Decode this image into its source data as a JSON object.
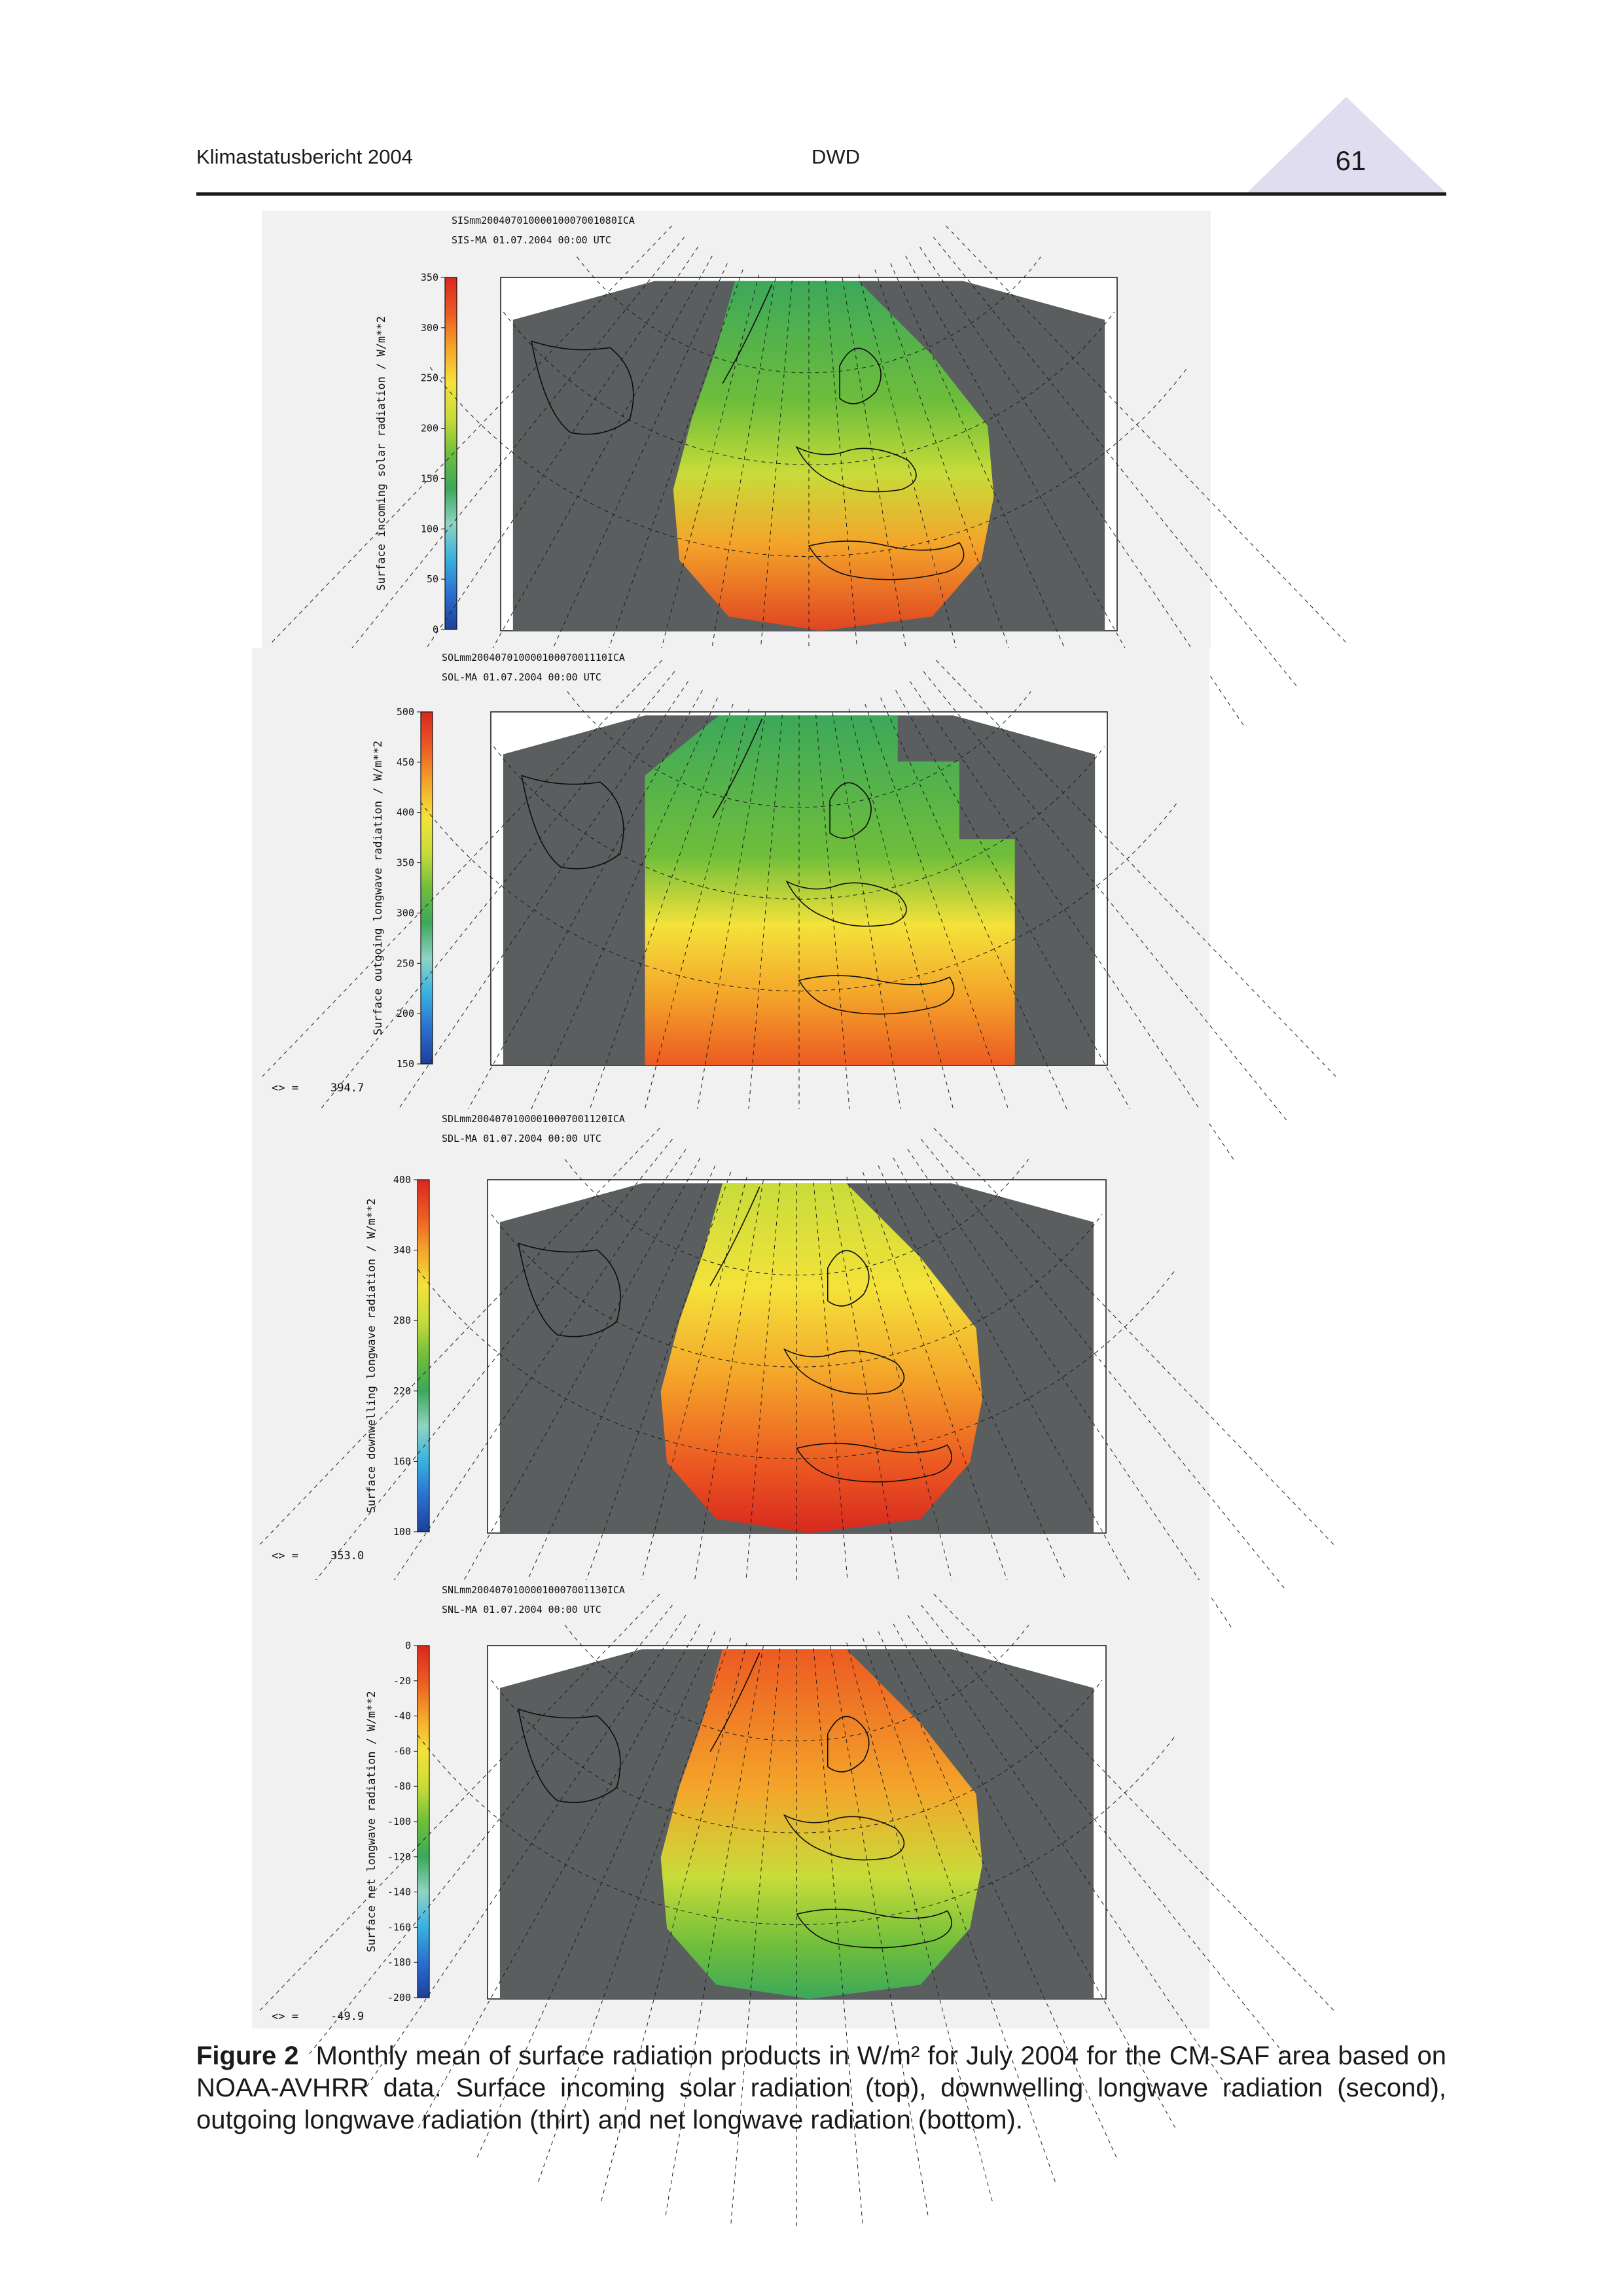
{
  "header": {
    "left": "Klimastatusbericht 2004",
    "center": "DWD",
    "page_number": "61"
  },
  "colors": {
    "background_grey": "#5a5e5e",
    "panel_bg": "#f1f1f1",
    "colormap": [
      "#1d3f9a",
      "#2a6fcf",
      "#38b1e0",
      "#8fd3c4",
      "#3ca85a",
      "#6fbe3b",
      "#c8dc3a",
      "#f4e23a",
      "#f4a52a",
      "#ec5a22",
      "#d8281e"
    ],
    "header_triangle": "#e0ddf0"
  },
  "panels": [
    {
      "id": "sis",
      "filename": "SISmm20040701000010007001080ICA",
      "product_line": "SIS-MA   01.07.2004 00:00 UTC",
      "colorbar_label": "Surface incoming solar radiation / W/m**2",
      "ticks": [
        "0",
        "50",
        "100",
        "150",
        "200",
        "250",
        "300",
        "350"
      ],
      "mean_label": "",
      "mean_value": ""
    },
    {
      "id": "sol",
      "filename": "SOLmm20040701000010007001110ICA",
      "product_line": "SOL-MA   01.07.2004 00:00 UTC",
      "colorbar_label": "Surface outgoing longwave radiation / W/m**2",
      "ticks": [
        "150",
        "200",
        "250",
        "300",
        "350",
        "400",
        "450",
        "500"
      ],
      "mean_label": "<> =",
      "mean_value": "394.7"
    },
    {
      "id": "sdl",
      "filename": "SDLmm20040701000010007001120ICA",
      "product_line": "SDL-MA   01.07.2004 00:00 UTC",
      "colorbar_label": "Surface downwelling longwave radiation / W/m**2",
      "ticks": [
        "100",
        "160",
        "220",
        "280",
        "340",
        "400"
      ],
      "mean_label": "<> =",
      "mean_value": "353.0"
    },
    {
      "id": "snl",
      "filename": "SNLmm20040701000010007001130ICA",
      "product_line": "SNL-MA   01.07.2004 00:00 UTC",
      "colorbar_label": "Surface net longwave radiation / W/m**2",
      "ticks": [
        "-200",
        "-180",
        "-160",
        "-140",
        "-120",
        "-100",
        "-80",
        "-60",
        "-40",
        "-20",
        "0"
      ],
      "mean_label": "<> =",
      "mean_value": "-49.9"
    }
  ],
  "caption": {
    "label": "Figure 2",
    "text": "Monthly mean of surface radiation products in W/m² for July 2004 for the CM-SAF area based on NOAA-AVHRR data. Surface incoming solar radiation (top), downwelling longwave radiation (second), outgoing longwave radiation (thirt) and net longwave radiation (bottom)."
  }
}
